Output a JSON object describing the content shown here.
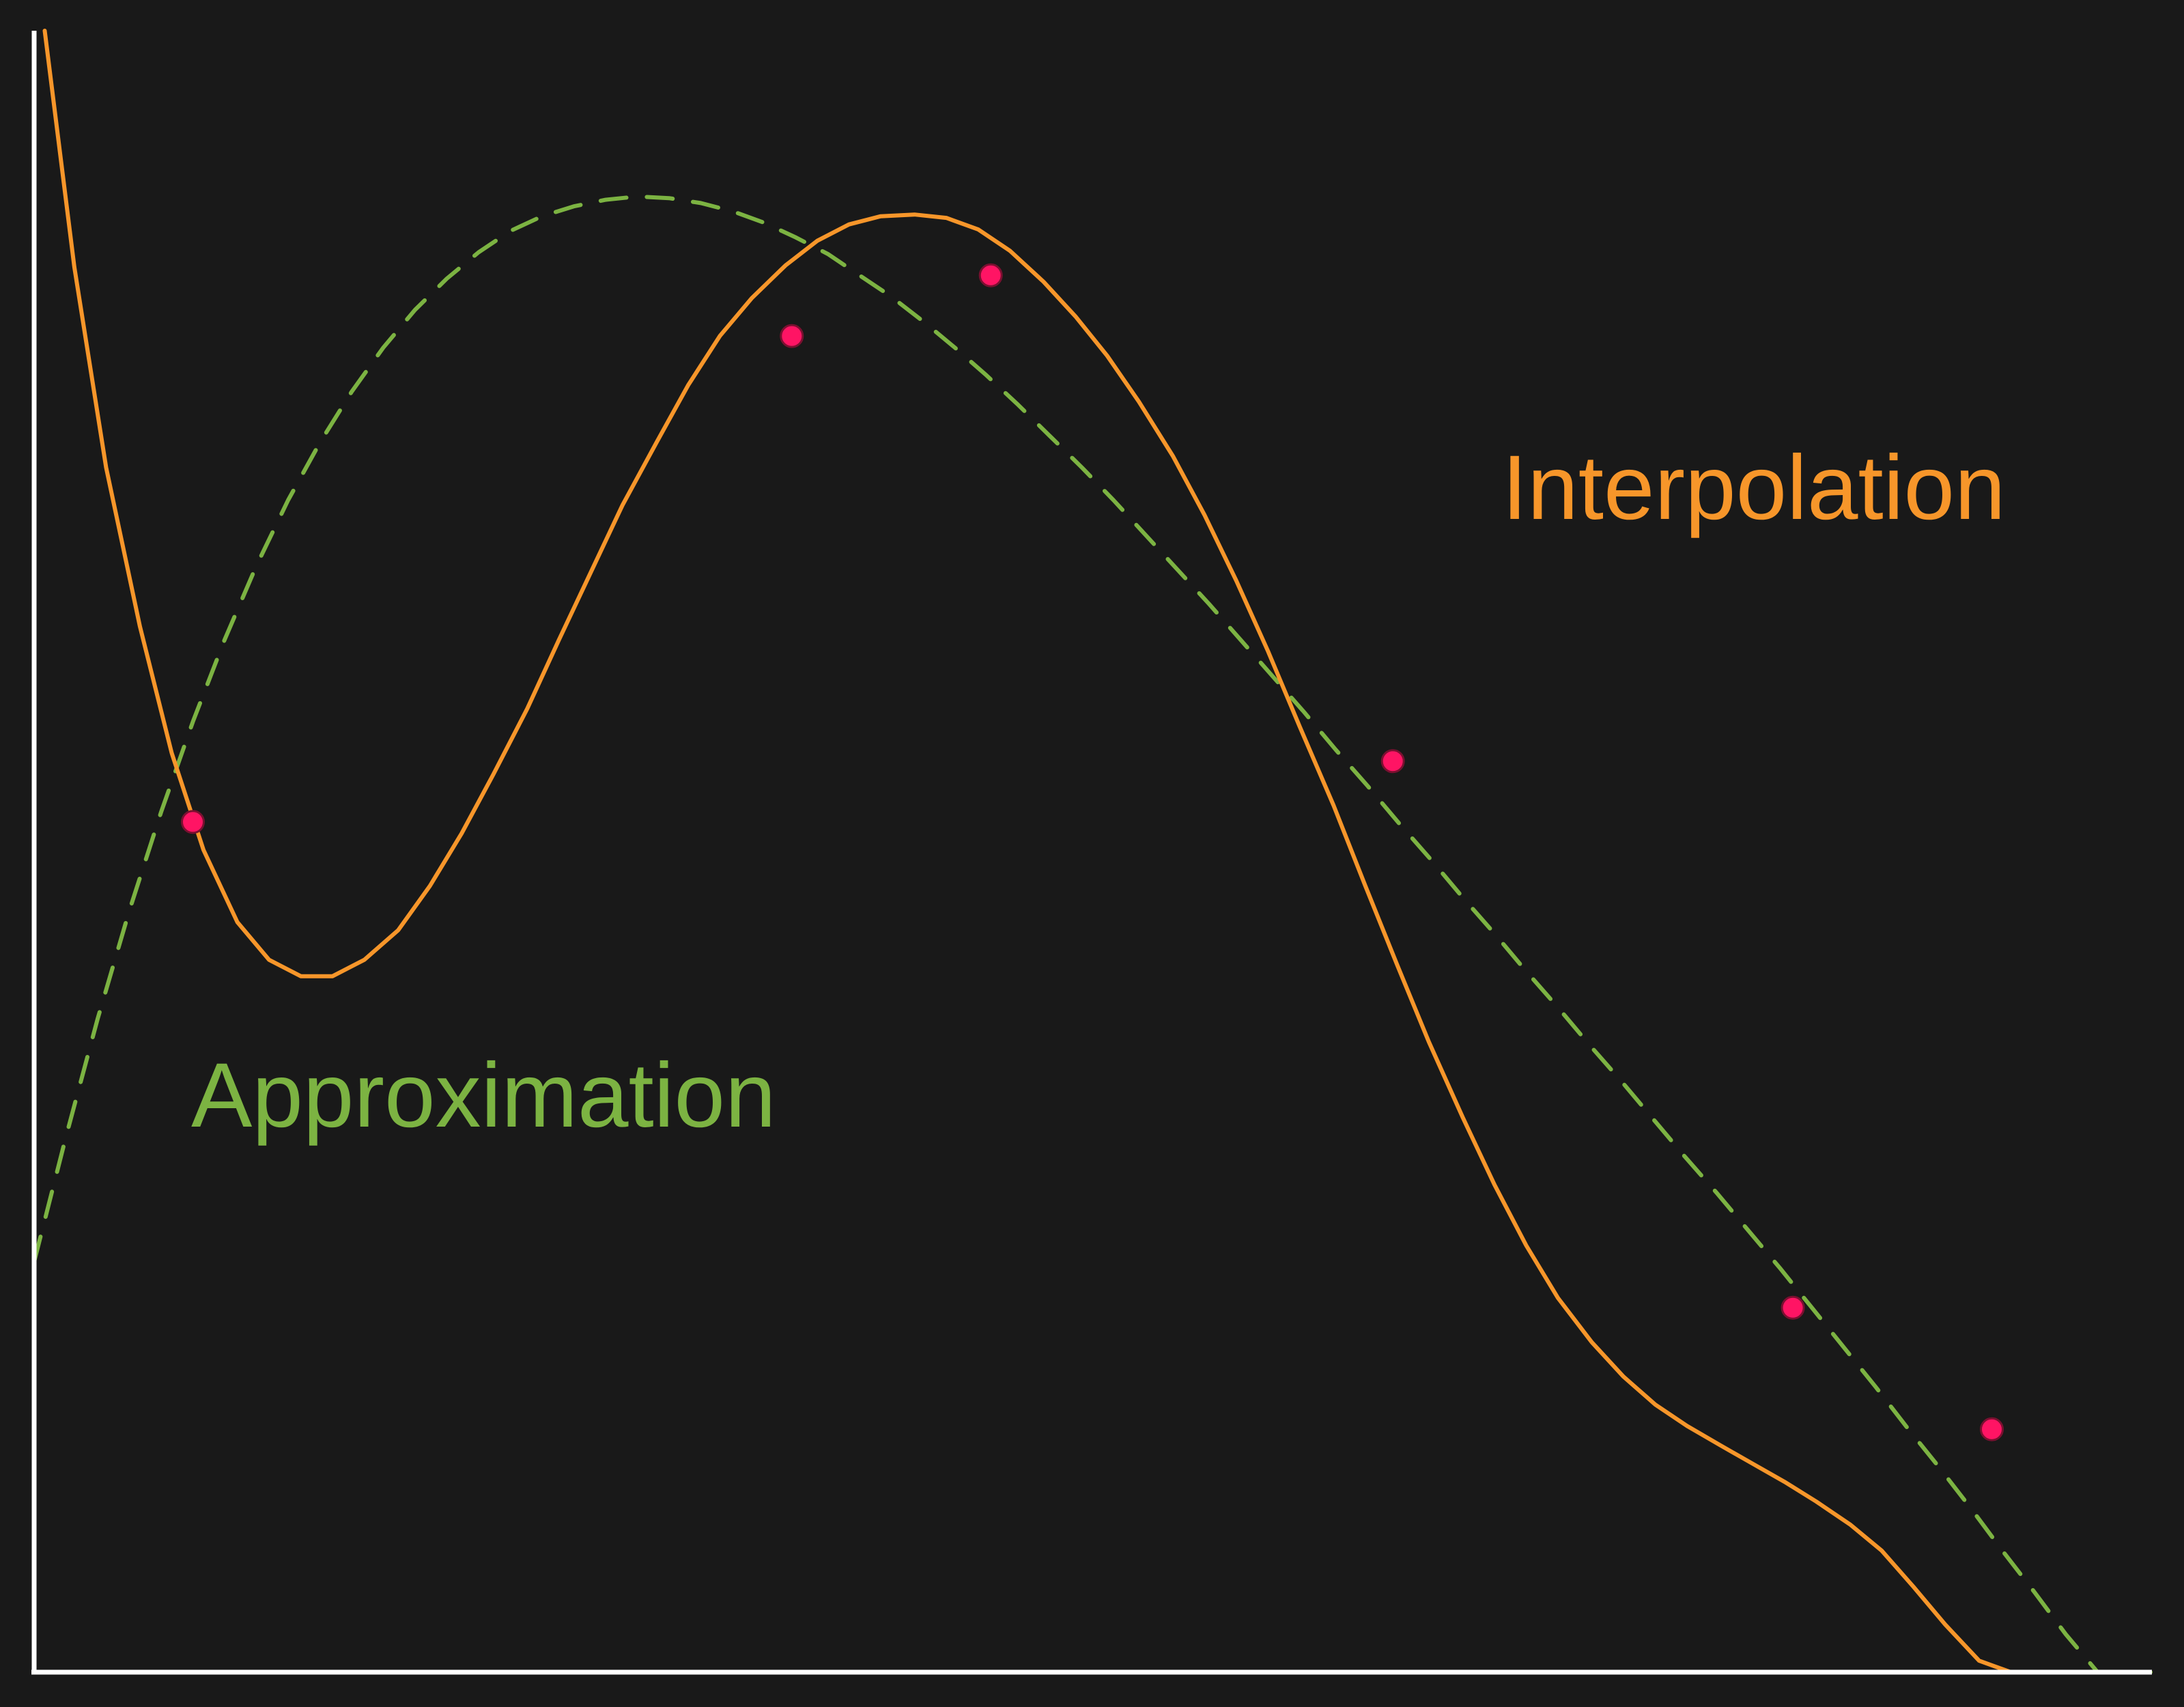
{
  "chart_data": {
    "type": "line",
    "title": "",
    "xlabel": "",
    "ylabel": "",
    "xlim": [
      0,
      10
    ],
    "ylim": [
      0,
      10
    ],
    "grid": false,
    "ticks_shown": false,
    "points": {
      "x": [
        0.75,
        3.58,
        4.52,
        6.42,
        8.31,
        9.25
      ],
      "y": [
        5.18,
        8.14,
        8.51,
        5.55,
        2.22,
        1.48
      ],
      "color": "#ff1464"
    },
    "series": [
      {
        "name": "Interpolation",
        "style": "solid",
        "color": "#f7962a",
        "x": [
          0.05,
          0.19,
          0.34,
          0.5,
          0.65,
          0.8,
          0.96,
          1.11,
          1.26,
          1.41,
          1.56,
          1.72,
          1.87,
          2.02,
          2.17,
          2.33,
          2.48,
          2.63,
          2.78,
          2.94,
          3.09,
          3.24,
          3.39,
          3.55,
          3.7,
          3.85,
          4.0,
          4.16,
          4.31,
          4.46,
          4.61,
          4.77,
          4.92,
          5.07,
          5.22,
          5.38,
          5.53,
          5.68,
          5.83,
          5.98,
          6.14,
          6.29,
          6.44,
          6.59,
          6.75,
          6.9,
          7.05,
          7.2,
          7.36,
          7.51,
          7.66,
          7.81,
          7.97,
          8.12,
          8.27,
          8.42,
          8.58,
          8.73,
          8.88,
          9.03,
          9.19,
          9.34,
          9.49,
          9.64,
          9.8,
          9.95
        ],
        "y": [
          10.0,
          8.56,
          7.34,
          6.37,
          5.6,
          5.01,
          4.57,
          4.34,
          4.24,
          4.24,
          4.34,
          4.52,
          4.79,
          5.11,
          5.47,
          5.87,
          6.29,
          6.7,
          7.11,
          7.49,
          7.84,
          8.14,
          8.37,
          8.57,
          8.72,
          8.82,
          8.87,
          8.88,
          8.86,
          8.79,
          8.66,
          8.47,
          8.26,
          8.02,
          7.74,
          7.41,
          7.05,
          6.65,
          6.22,
          5.76,
          5.28,
          4.79,
          4.31,
          3.84,
          3.38,
          2.97,
          2.6,
          2.28,
          2.01,
          1.8,
          1.63,
          1.5,
          1.38,
          1.27,
          1.16,
          1.04,
          0.9,
          0.74,
          0.52,
          0.29,
          0.07,
          0.0,
          0.0,
          0.0,
          0.0,
          0.0
        ]
      },
      {
        "name": "Approximation",
        "style": "dashed",
        "color": "#7cb342",
        "x": [
          0.0,
          0.15,
          0.3,
          0.45,
          0.6,
          0.75,
          0.9,
          1.05,
          1.2,
          1.35,
          1.5,
          1.65,
          1.8,
          1.95,
          2.1,
          2.25,
          2.4,
          2.55,
          2.7,
          2.85,
          3.0,
          3.15,
          3.3,
          3.45,
          3.6,
          3.75,
          3.9,
          4.05,
          4.2,
          4.35,
          4.5,
          4.65,
          4.8,
          4.95,
          5.1,
          5.25,
          5.4,
          5.55,
          5.7,
          5.85,
          6.0,
          6.15,
          6.3,
          6.45,
          6.6,
          6.75,
          6.9,
          7.05,
          7.2,
          7.35,
          7.5,
          7.65,
          7.8,
          7.95,
          8.1,
          8.25,
          8.4,
          8.55,
          8.7,
          8.85,
          9.0,
          9.15,
          9.3,
          9.45,
          9.6,
          9.75,
          9.9,
          10.0
        ],
        "y": [
          2.5,
          3.26,
          3.98,
          4.64,
          5.24,
          5.79,
          6.29,
          6.74,
          7.14,
          7.49,
          7.8,
          8.07,
          8.3,
          8.49,
          8.65,
          8.78,
          8.87,
          8.93,
          8.97,
          8.99,
          8.98,
          8.95,
          8.9,
          8.83,
          8.74,
          8.64,
          8.51,
          8.38,
          8.23,
          8.07,
          7.9,
          7.72,
          7.53,
          7.34,
          7.14,
          6.93,
          6.72,
          6.51,
          6.29,
          6.07,
          5.85,
          5.62,
          5.4,
          5.17,
          4.95,
          4.72,
          4.5,
          4.27,
          4.05,
          3.82,
          3.6,
          3.37,
          3.14,
          2.92,
          2.69,
          2.46,
          2.22,
          1.98,
          1.74,
          1.49,
          1.25,
          1.0,
          0.74,
          0.49,
          0.23,
          0.0,
          0.0,
          0.0
        ]
      }
    ],
    "annotations": [
      {
        "text": "Interpolation",
        "color": "#f7962a"
      },
      {
        "text": "Approximation",
        "color": "#7cb342"
      }
    ]
  }
}
